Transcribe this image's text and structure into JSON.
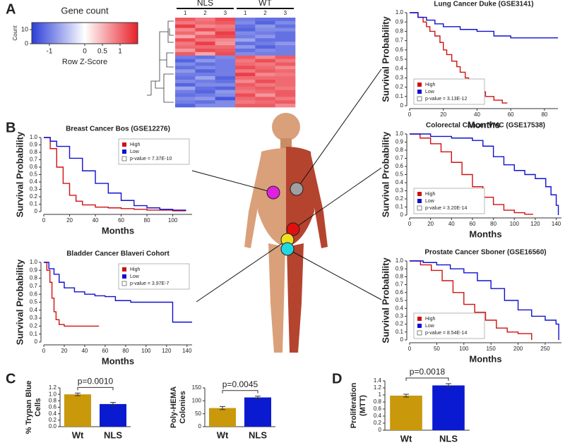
{
  "panels": [
    "A",
    "B",
    "C",
    "D"
  ],
  "chart_data": [
    {
      "type": "colorbar",
      "title": "Gene count",
      "xlabel": "Row Z-Score",
      "ylabel": "Count",
      "xlim": [
        -1.5,
        1.5
      ],
      "xticks": [
        -1,
        0,
        0.5,
        1
      ],
      "ylim": [
        0,
        15
      ],
      "yticks": [
        0,
        10
      ],
      "colors": [
        "#2b3ed8",
        "#ffffff",
        "#e8202a"
      ]
    },
    {
      "type": "heatmap",
      "groups": [
        {
          "name": "NLS",
          "columns": [
            "1",
            "2",
            "3"
          ]
        },
        {
          "name": "WT",
          "columns": [
            "1",
            "2",
            "3"
          ]
        }
      ],
      "vlim": [
        -1.5,
        1.5
      ],
      "rows": [
        [
          1.1,
          0.9,
          1.2,
          -1.0,
          -1.1,
          -1.1
        ],
        [
          0.9,
          1.0,
          1.1,
          -0.9,
          -1.2,
          -0.9
        ],
        [
          1.3,
          0.8,
          0.9,
          -1.1,
          -0.8,
          -1.1
        ],
        [
          0.8,
          1.2,
          1.0,
          -1.2,
          -0.9,
          -0.9
        ],
        [
          1.0,
          0.7,
          1.3,
          -0.9,
          -1.0,
          -1.1
        ],
        [
          0.6,
          1.1,
          1.2,
          -1.0,
          -0.8,
          -1.1
        ],
        [
          1.2,
          0.9,
          0.8,
          -0.7,
          -1.1,
          -1.1
        ],
        [
          0.9,
          1.3,
          0.7,
          -1.1,
          -1.0,
          -0.8
        ],
        [
          1.0,
          1.0,
          1.0,
          -0.8,
          -1.2,
          -1.0
        ],
        [
          0.7,
          1.2,
          1.1,
          -1.1,
          -0.9,
          -1.0
        ],
        [
          1.1,
          0.6,
          1.2,
          -0.9,
          -1.0,
          -1.0
        ],
        [
          -1.0,
          -1.1,
          -0.9,
          1.1,
          0.8,
          1.1
        ],
        [
          -1.2,
          -0.8,
          -1.0,
          0.9,
          1.2,
          0.9
        ],
        [
          -0.9,
          -1.1,
          -1.0,
          1.0,
          0.9,
          1.1
        ],
        [
          -1.1,
          -0.9,
          -1.0,
          1.2,
          1.0,
          0.8
        ],
        [
          -0.8,
          -1.2,
          -1.0,
          0.9,
          1.1,
          1.0
        ],
        [
          -1.0,
          -1.0,
          -1.0,
          1.3,
          0.8,
          0.9
        ],
        [
          -1.1,
          -0.7,
          -1.2,
          1.0,
          1.0,
          1.0
        ],
        [
          -0.9,
          -1.0,
          -1.1,
          0.8,
          1.2,
          1.0
        ],
        [
          -1.2,
          -0.9,
          -0.9,
          1.1,
          0.9,
          1.0
        ],
        [
          -0.7,
          -1.1,
          -1.2,
          1.0,
          1.1,
          0.9
        ],
        [
          -1.0,
          -1.2,
          -0.8,
          0.9,
          1.0,
          1.1
        ],
        [
          -1.1,
          -1.0,
          -0.9,
          1.2,
          0.7,
          1.1
        ],
        [
          -0.9,
          -0.8,
          -1.3,
          1.0,
          1.1,
          0.9
        ],
        [
          -1.0,
          -1.1,
          -0.9,
          0.9,
          1.0,
          1.1
        ],
        [
          -1.2,
          -0.9,
          -0.9,
          1.1,
          1.1,
          0.8
        ]
      ]
    },
    {
      "type": "km",
      "title": "Lung Cancer Duke (GSE3141)",
      "xlabel": "Months",
      "ylabel": "Survival Probability",
      "xlim": [
        0,
        88
      ],
      "xticks": [
        0,
        20,
        40,
        60,
        80
      ],
      "ylim": [
        0,
        1
      ],
      "yticks": [
        0,
        0.1,
        0.2,
        0.3,
        0.4,
        0.5,
        0.6,
        0.7,
        0.8,
        0.9,
        {
          "value": 1,
          "label": "1.0"
        }
      ],
      "legend": "lower left",
      "annotation": "p-value = 3.13E-12",
      "series": [
        {
          "name": "High",
          "color": "#d01010",
          "x": [
            0,
            5,
            8,
            10,
            12,
            15,
            18,
            20,
            22,
            25,
            28,
            30,
            33,
            35,
            38,
            40,
            45,
            50,
            55,
            58
          ],
          "values": [
            1,
            0.95,
            0.9,
            0.85,
            0.8,
            0.75,
            0.68,
            0.6,
            0.55,
            0.48,
            0.42,
            0.36,
            0.3,
            0.24,
            0.19,
            0.15,
            0.1,
            0.06,
            0.03,
            0.03
          ]
        },
        {
          "name": "Low",
          "color": "#1010d0",
          "x": [
            0,
            5,
            10,
            15,
            20,
            30,
            40,
            50,
            60,
            88
          ],
          "values": [
            1,
            0.95,
            0.92,
            0.88,
            0.85,
            0.82,
            0.8,
            0.75,
            0.73,
            0.73
          ]
        }
      ]
    },
    {
      "type": "km",
      "title": "Breast Cancer Bos (GSE12276)",
      "xlabel": "Months",
      "ylabel": "Survival Probability",
      "xlim": [
        0,
        115
      ],
      "xticks": [
        0,
        20,
        40,
        60,
        80,
        100
      ],
      "ylim": [
        0,
        1
      ],
      "yticks": [
        0,
        0.1,
        0.2,
        0.3,
        0.4,
        0.5,
        0.6,
        0.7,
        0.8,
        0.9,
        {
          "value": 1,
          "label": "1.0"
        }
      ],
      "legend": "upper right",
      "annotation": "p-value = 7.37E-10",
      "series": [
        {
          "name": "High",
          "color": "#d01010",
          "x": [
            0,
            5,
            10,
            15,
            20,
            25,
            30,
            40,
            50,
            60,
            70,
            80,
            90,
            100,
            110
          ],
          "values": [
            1,
            0.85,
            0.6,
            0.38,
            0.22,
            0.14,
            0.09,
            0.06,
            0.05,
            0.04,
            0.03,
            0.02,
            0.02,
            0.01,
            0.01
          ]
        },
        {
          "name": "Low",
          "color": "#1010d0",
          "x": [
            0,
            5,
            10,
            20,
            30,
            40,
            50,
            60,
            70,
            80,
            90,
            100,
            110
          ],
          "values": [
            1,
            0.95,
            0.88,
            0.72,
            0.55,
            0.38,
            0.25,
            0.15,
            0.08,
            0.05,
            0.03,
            0.02,
            0.01
          ]
        }
      ]
    },
    {
      "type": "km",
      "title": "Colorectal Cancer VMC (GSE17538)",
      "xlabel": "Months",
      "ylabel": "Survival Probability",
      "xlim": [
        0,
        145
      ],
      "xticks": [
        0,
        20,
        40,
        60,
        80,
        100,
        120,
        140
      ],
      "ylim": [
        0,
        1
      ],
      "yticks": [
        0,
        0.1,
        0.2,
        0.3,
        0.4,
        0.5,
        0.6,
        0.7,
        0.8,
        0.9,
        {
          "value": 1,
          "label": "1.0"
        }
      ],
      "legend": "lower left",
      "annotation": "p-value = 3.20E-14",
      "series": [
        {
          "name": "High",
          "color": "#d01010",
          "x": [
            0,
            10,
            20,
            30,
            40,
            50,
            60,
            70,
            80,
            90,
            100,
            110,
            118
          ],
          "values": [
            1,
            0.95,
            0.88,
            0.78,
            0.65,
            0.5,
            0.35,
            0.22,
            0.13,
            0.06,
            0.03,
            0.01,
            0.01
          ]
        },
        {
          "name": "Low",
          "color": "#1010d0",
          "x": [
            0,
            10,
            20,
            40,
            60,
            70,
            80,
            90,
            100,
            110,
            120,
            130,
            135,
            140,
            142
          ],
          "values": [
            1,
            1,
            0.97,
            0.95,
            0.92,
            0.85,
            0.72,
            0.62,
            0.55,
            0.5,
            0.45,
            0.35,
            0.25,
            0.12,
            0
          ]
        }
      ]
    },
    {
      "type": "km",
      "title": "Bladder Cancer Blaveri Cohort",
      "xlabel": "Months",
      "ylabel": "Survival Probability",
      "xlim": [
        0,
        145
      ],
      "xticks": [
        0,
        20,
        40,
        60,
        80,
        100,
        120,
        140
      ],
      "ylim": [
        0,
        1
      ],
      "yticks": [
        0,
        0.1,
        0.2,
        0.3,
        0.4,
        0.5,
        0.6,
        0.7,
        0.8,
        0.9,
        {
          "value": 1,
          "label": "1.0"
        }
      ],
      "legend": "upper right",
      "annotation": "p-value = 3.97E-7",
      "series": [
        {
          "name": "High",
          "color": "#d01010",
          "x": [
            0,
            3,
            6,
            8,
            10,
            12,
            15,
            20,
            30,
            40,
            54
          ],
          "values": [
            1,
            0.9,
            0.75,
            0.55,
            0.38,
            0.28,
            0.22,
            0.2,
            0.2,
            0.2,
            0.2
          ]
        },
        {
          "name": "Low",
          "color": "#1010d0",
          "x": [
            0,
            5,
            10,
            15,
            20,
            30,
            40,
            50,
            60,
            70,
            85,
            100,
            125,
            126,
            145
          ],
          "values": [
            1,
            0.92,
            0.85,
            0.75,
            0.68,
            0.63,
            0.6,
            0.58,
            0.57,
            0.52,
            0.5,
            0.5,
            0.5,
            0.25,
            0.25
          ]
        }
      ]
    },
    {
      "type": "km",
      "title": "Prostate Cancer Sboner (GSE16560)",
      "xlabel": "Months",
      "ylabel": "Survival Probability",
      "xlim": [
        0,
        280
      ],
      "xticks": [
        0,
        50,
        100,
        150,
        200,
        250
      ],
      "ylim": [
        0,
        1
      ],
      "yticks": [
        0,
        0.1,
        0.2,
        0.3,
        0.4,
        0.5,
        0.6,
        0.7,
        0.8,
        0.9,
        {
          "value": 1,
          "label": "1.0"
        }
      ],
      "legend": "lower left",
      "annotation": "p-value = 8.54E-14",
      "series": [
        {
          "name": "High",
          "color": "#d01010",
          "x": [
            0,
            20,
            40,
            60,
            80,
            100,
            120,
            140,
            160,
            180,
            200,
            220,
            225
          ],
          "values": [
            1,
            0.95,
            0.88,
            0.75,
            0.6,
            0.45,
            0.35,
            0.25,
            0.15,
            0.1,
            0.08,
            0.08,
            0
          ]
        },
        {
          "name": "Low",
          "color": "#1010d0",
          "x": [
            0,
            25,
            50,
            75,
            100,
            125,
            150,
            175,
            200,
            225,
            250,
            270,
            275
          ],
          "values": [
            1,
            0.98,
            0.95,
            0.9,
            0.85,
            0.75,
            0.65,
            0.5,
            0.38,
            0.3,
            0.25,
            0.2,
            0
          ]
        }
      ]
    },
    {
      "type": "bar",
      "ylabel": [
        "% Trypan Blue",
        "Cells"
      ],
      "categories": [
        "Wt",
        "NLS"
      ],
      "values": [
        1.0,
        0.7
      ],
      "errors": [
        0.04,
        0.05
      ],
      "colors": [
        "#c9980b",
        "#0a1ad0"
      ],
      "ylim": [
        0,
        1.2
      ],
      "yticks": [
        {
          "value": 0,
          "label": "0.0"
        },
        0.2,
        0.4,
        0.6,
        0.8,
        {
          "value": 1,
          "label": "1.0"
        },
        1.2
      ],
      "annotation": "p=0.0010"
    },
    {
      "type": "bar",
      "ylabel": [
        "Poly-HEMA",
        "Colonies"
      ],
      "categories": [
        "Wt",
        "NLS"
      ],
      "values": [
        72,
        113
      ],
      "errors": [
        6,
        5
      ],
      "colors": [
        "#c9980b",
        "#0a1ad0"
      ],
      "ylim": [
        0,
        150
      ],
      "yticks": [
        0,
        50,
        100,
        150
      ],
      "annotation": "p=0.0045"
    },
    {
      "type": "bar",
      "ylabel": [
        "Proliferation",
        "(MTT)"
      ],
      "categories": [
        "Wt",
        "NLS"
      ],
      "values": [
        0.98,
        1.27
      ],
      "errors": [
        0.04,
        0.05
      ],
      "colors": [
        "#c9980b",
        "#0a1ad0"
      ],
      "ylim": [
        0,
        1.4
      ],
      "yticks": [
        0,
        0.2,
        0.4,
        0.6,
        0.8,
        1,
        1.2,
        1.4
      ],
      "annotation": "p=0.0018"
    }
  ]
}
